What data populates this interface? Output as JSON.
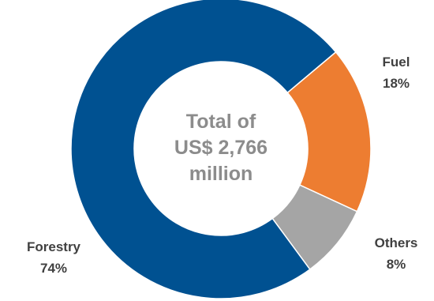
{
  "chart_data": {
    "type": "pie",
    "variant": "donut",
    "slices": [
      {
        "name": "Fuel",
        "label": "18%",
        "value": 18,
        "color": "#ed7d31"
      },
      {
        "name": "Others",
        "label": "8%",
        "value": 8,
        "color": "#a5a5a5"
      },
      {
        "name": "Forestry",
        "label": "74%",
        "value": 74,
        "color": "#005191"
      }
    ],
    "center_text": [
      "Total of",
      "US$ 2,766",
      "million"
    ],
    "legend": "none"
  }
}
